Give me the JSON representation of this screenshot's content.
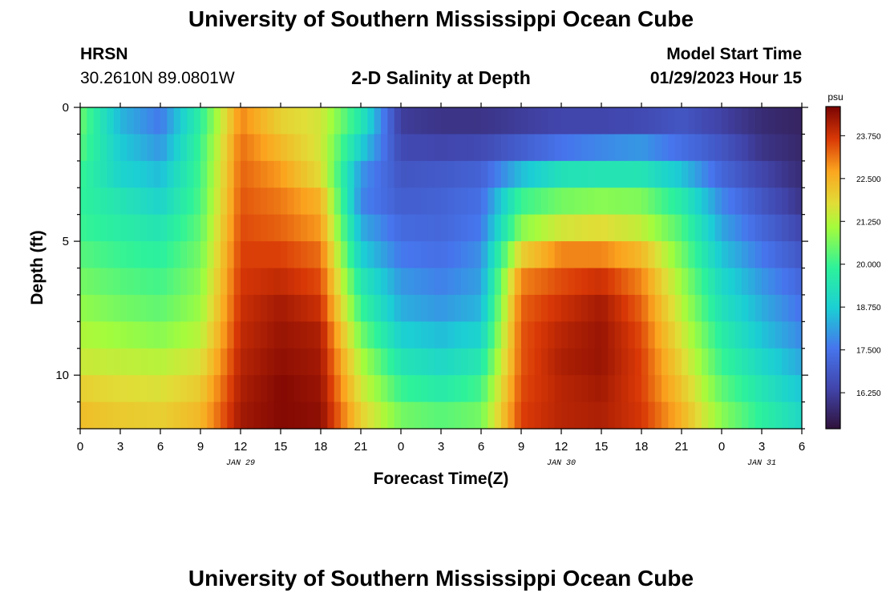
{
  "header": {
    "title": "University of Southern Mississippi Ocean Cube",
    "station": "HRSN",
    "coords": "30.2610N  89.0801W",
    "subtitle": "2-D Salinity at Depth",
    "start_label": "Model Start Time",
    "start_value": "01/29/2023 Hour 15"
  },
  "footer": {
    "title": "University of Southern Mississippi Ocean Cube"
  },
  "chart_data": {
    "type": "heatmap",
    "title": "2-D Salinity at Depth",
    "xlabel": "Forecast Time(Z)",
    "ylabel": "Depth (ft)",
    "x_hours_range": [
      0,
      54
    ],
    "y_range": [
      0,
      12
    ],
    "y_ticks": [
      0,
      5,
      10
    ],
    "x_tick_labels": [
      "0",
      "3",
      "6",
      "9",
      "12",
      "15",
      "18",
      "21",
      "0",
      "3",
      "6",
      "9",
      "12",
      "15",
      "18",
      "21",
      "0",
      "3",
      "6"
    ],
    "date_labels": [
      {
        "label": "JAN 29",
        "hour": 12
      },
      {
        "label": "JAN 30",
        "hour": 36
      },
      {
        "label": "JAN 31",
        "hour": 51
      }
    ],
    "colorbar": {
      "units": "psu",
      "min": 15.2,
      "max": 24.6,
      "ticks": [
        "23.750",
        "22.500",
        "21.250",
        "20.000",
        "18.750",
        "17.500",
        "16.250"
      ],
      "tick_values": [
        23.75,
        22.5,
        21.25,
        20.0,
        18.75,
        17.5,
        16.25
      ]
    },
    "depth_rows": [
      0.5,
      1.5,
      2.5,
      3.5,
      4.5,
      5.5,
      6.5,
      7.5,
      8.5,
      9.5,
      10.5,
      11.5
    ],
    "time_hours": [
      0,
      3,
      6,
      9,
      12,
      15,
      18,
      21,
      24,
      27,
      30,
      33,
      36,
      39,
      42,
      45,
      48,
      51,
      54
    ],
    "salinity_psu": [
      [
        20.5,
        18.4,
        17.6,
        19.8,
        23.0,
        22.0,
        21.6,
        19.5,
        16.2,
        16.0,
        16.0,
        16.2,
        16.4,
        16.4,
        16.5,
        16.8,
        16.3,
        15.8,
        15.6
      ],
      [
        20.3,
        18.7,
        18.0,
        20.0,
        23.2,
        22.4,
        21.6,
        18.8,
        16.5,
        16.4,
        16.5,
        17.0,
        17.5,
        17.8,
        18.0,
        17.4,
        16.8,
        16.0,
        15.7
      ],
      [
        20.0,
        18.9,
        18.5,
        20.1,
        23.3,
        22.8,
        21.8,
        18.0,
        16.8,
        16.9,
        17.1,
        18.5,
        19.3,
        19.4,
        19.4,
        18.6,
        17.2,
        16.4,
        15.8
      ],
      [
        19.9,
        19.4,
        18.9,
        20.2,
        23.4,
        23.1,
        22.5,
        17.8,
        17.0,
        17.1,
        17.4,
        20.0,
        20.6,
        20.8,
        20.7,
        19.6,
        17.8,
        16.8,
        16.0
      ],
      [
        20.0,
        19.7,
        19.4,
        20.4,
        23.5,
        23.3,
        22.8,
        18.3,
        17.3,
        17.2,
        17.6,
        20.8,
        21.6,
        21.8,
        21.4,
        20.2,
        18.2,
        17.2,
        16.4
      ],
      [
        20.3,
        20.0,
        19.8,
        20.6,
        23.6,
        23.6,
        23.2,
        18.8,
        17.6,
        17.4,
        17.9,
        22.0,
        23.0,
        23.0,
        22.4,
        20.6,
        18.6,
        17.6,
        16.8
      ],
      [
        20.6,
        20.3,
        20.1,
        20.8,
        23.7,
        23.9,
        23.5,
        19.5,
        18.0,
        17.7,
        18.1,
        23.0,
        23.5,
        23.8,
        23.0,
        21.0,
        19.0,
        18.0,
        17.2
      ],
      [
        20.9,
        20.6,
        20.4,
        21.0,
        23.8,
        24.2,
        23.8,
        20.0,
        18.3,
        18.0,
        18.4,
        23.3,
        23.8,
        24.2,
        23.3,
        21.3,
        19.3,
        18.3,
        17.5
      ],
      [
        21.2,
        21.0,
        20.8,
        21.3,
        23.9,
        24.3,
        24.1,
        20.6,
        18.8,
        18.5,
        18.9,
        23.4,
        24.0,
        24.3,
        23.5,
        21.6,
        19.7,
        18.6,
        17.8
      ],
      [
        21.5,
        21.4,
        21.3,
        21.7,
        24.0,
        24.4,
        24.2,
        21.2,
        19.4,
        19.0,
        19.5,
        23.4,
        24.1,
        24.3,
        23.6,
        21.9,
        20.0,
        19.0,
        18.2
      ],
      [
        22.0,
        21.8,
        21.7,
        22.1,
        24.1,
        24.5,
        24.3,
        21.6,
        20.0,
        19.6,
        20.1,
        23.5,
        24.0,
        24.2,
        23.6,
        22.2,
        20.4,
        19.4,
        18.6
      ],
      [
        22.3,
        22.1,
        22.0,
        22.4,
        24.2,
        24.5,
        24.4,
        22.0,
        20.6,
        20.3,
        20.6,
        23.6,
        24.0,
        24.1,
        23.7,
        22.5,
        20.8,
        19.8,
        19.0
      ]
    ]
  }
}
